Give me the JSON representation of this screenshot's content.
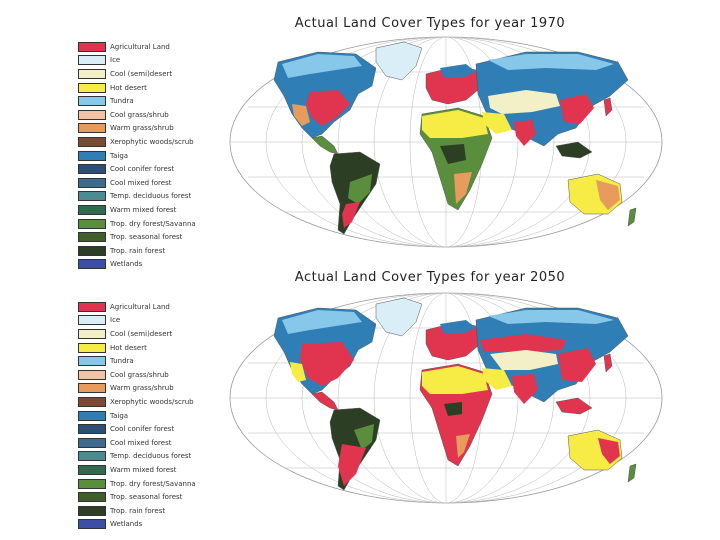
{
  "panels": [
    {
      "title": "Actual Land Cover Types for year 1970",
      "legend": [
        {
          "label": "Agricultural Land",
          "color": "#e0344f"
        },
        {
          "label": "Ice",
          "color": "#d9eef7"
        },
        {
          "label": "Cool (semi)desert",
          "color": "#f3efc6"
        },
        {
          "label": "Hot desert",
          "color": "#f7ec45"
        },
        {
          "label": "Tundra",
          "color": "#86c7ea"
        },
        {
          "label": "Cool grass/shrub",
          "color": "#f2c3a5"
        },
        {
          "label": "Warm grass/shrub",
          "color": "#e79b5d"
        },
        {
          "label": "Xerophytic woods/scrub",
          "color": "#7a4a35"
        },
        {
          "label": "Taiga",
          "color": "#2f7fb6"
        },
        {
          "label": "Cool conifer forest",
          "color": "#2c4e77"
        },
        {
          "label": "Cool mixed forest",
          "color": "#3d6a8e"
        },
        {
          "label": "Temp. deciduous forest",
          "color": "#4b8c93"
        },
        {
          "label": "Warm mixed forest",
          "color": "#2f6b4c"
        },
        {
          "label": "Trop. dry forest/Savanna",
          "color": "#5a8e3c"
        },
        {
          "label": "Trop. seasonal forest",
          "color": "#3f5e2c"
        },
        {
          "label": "Trop. rain forest",
          "color": "#2c3f25"
        },
        {
          "label": "Wetlands",
          "color": "#3b4fa8"
        }
      ]
    },
    {
      "title": "Actual Land Cover Types for year 2050",
      "legend": [
        {
          "label": "Agricultural Land",
          "color": "#e0344f"
        },
        {
          "label": "Ice",
          "color": "#d9eef7"
        },
        {
          "label": "Cool (semi)desert",
          "color": "#f3efc6"
        },
        {
          "label": "Hot desert",
          "color": "#f7ec45"
        },
        {
          "label": "Tundra",
          "color": "#86c7ea"
        },
        {
          "label": "Cool grass/shrub",
          "color": "#f2c3a5"
        },
        {
          "label": "Warm grass/shrub",
          "color": "#e79b5d"
        },
        {
          "label": "Xerophytic woods/scrub",
          "color": "#7a4a35"
        },
        {
          "label": "Taiga",
          "color": "#2f7fb6"
        },
        {
          "label": "Cool conifer forest",
          "color": "#2c4e77"
        },
        {
          "label": "Cool mixed forest",
          "color": "#3d6a8e"
        },
        {
          "label": "Temp. deciduous forest",
          "color": "#4b8c93"
        },
        {
          "label": "Warm mixed forest",
          "color": "#2f6b4c"
        },
        {
          "label": "Trop. dry forest/Savanna",
          "color": "#5a8e3c"
        },
        {
          "label": "Trop. seasonal forest",
          "color": "#3f5e2c"
        },
        {
          "label": "Trop. rain forest",
          "color": "#2c3f25"
        },
        {
          "label": "Wetlands",
          "color": "#3b4fa8"
        }
      ]
    }
  ]
}
